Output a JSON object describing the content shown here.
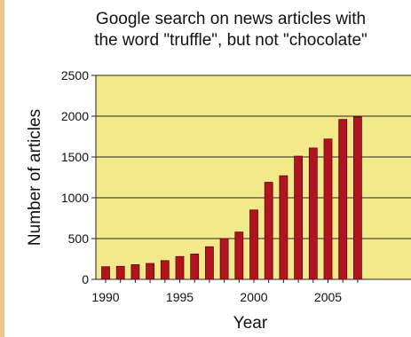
{
  "chart_data": {
    "type": "bar",
    "title_lines": [
      "Google search on news articles with",
      "the word \"truffle\", but not \"chocolate\""
    ],
    "xlabel": "Year",
    "ylabel": "Number of articles",
    "categories": [
      1990,
      1991,
      1992,
      1993,
      1994,
      1995,
      1996,
      1997,
      1998,
      1999,
      2000,
      2001,
      2002,
      2003,
      2004,
      2005,
      2006,
      2007
    ],
    "values": [
      155,
      160,
      180,
      195,
      230,
      280,
      310,
      400,
      500,
      580,
      850,
      1190,
      1270,
      1510,
      1610,
      1720,
      1960,
      1990
    ],
    "x_ticks": [
      "1990",
      "1995",
      "2000",
      "2005"
    ],
    "y_ticks": [
      "0",
      "500",
      "1000",
      "1500",
      "2000",
      "2500"
    ],
    "ylim": [
      0,
      2500
    ],
    "grid": true,
    "colors": {
      "plot_background": "#f3e98a",
      "bar": "#b0141e",
      "border": "#e9c88e"
    }
  }
}
